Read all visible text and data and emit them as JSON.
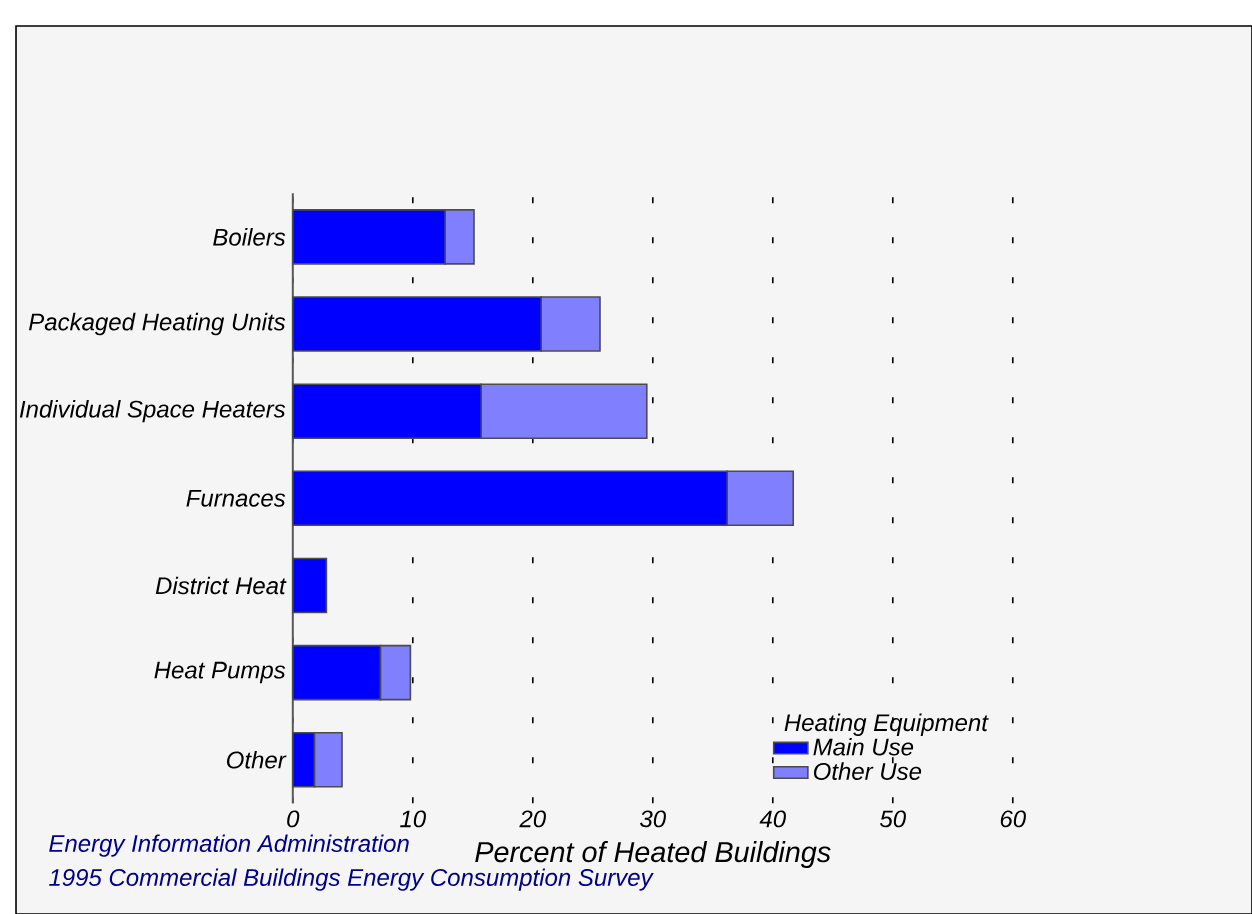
{
  "chart_data": {
    "type": "bar",
    "orientation": "horizontal",
    "stacked": true,
    "categories": [
      "Boilers",
      "Packaged Heating Units",
      "Individual Space Heaters",
      "Furnaces",
      "District Heat",
      "Heat Pumps",
      "Other"
    ],
    "series": [
      {
        "name": "Main Use",
        "color": "#0000ff",
        "values": [
          12.7,
          20.7,
          15.7,
          36.2,
          2.8,
          7.3,
          1.8
        ]
      },
      {
        "name": "Other Use",
        "color": "#8080ff",
        "values": [
          2.4,
          4.9,
          13.8,
          5.5,
          0,
          2.5,
          2.3
        ]
      }
    ],
    "xlim": [
      0,
      60
    ],
    "xticks": [
      0,
      10,
      20,
      30,
      40,
      50,
      60
    ],
    "xlabel": "Percent of Heated Buildings",
    "legend_title": "Heating Equipment",
    "legend": "bottom right",
    "grid": "x",
    "annotations": [
      "Energy Information Administration",
      "1995 Commercial Buildings Energy Consumption Survey"
    ]
  }
}
